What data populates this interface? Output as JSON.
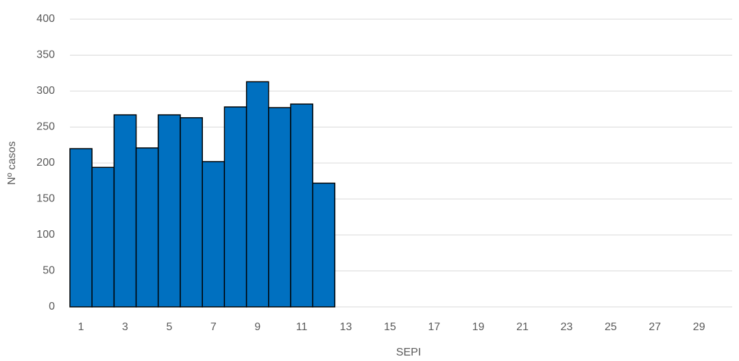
{
  "chart_data": {
    "type": "bar",
    "xlabel": "SEPI",
    "ylabel": "Nº casos",
    "categories": [
      1,
      null,
      3,
      null,
      5,
      null,
      7,
      null,
      9,
      null,
      11,
      null,
      13,
      null,
      15,
      null,
      17,
      null,
      19,
      null,
      21,
      null,
      23,
      null,
      25,
      null,
      27,
      null,
      29,
      null
    ],
    "values": [
      220,
      194,
      267,
      221,
      267,
      263,
      202,
      278,
      313,
      277,
      282,
      172,
      null,
      null,
      null,
      null,
      null,
      null,
      null,
      null,
      null,
      null,
      null,
      null,
      null,
      null,
      null,
      null,
      null,
      null
    ],
    "color": "#0070c0",
    "ylim": [
      0,
      400
    ],
    "yticks": [
      0,
      50,
      100,
      150,
      200,
      250,
      300,
      350,
      400
    ],
    "grid": true
  }
}
